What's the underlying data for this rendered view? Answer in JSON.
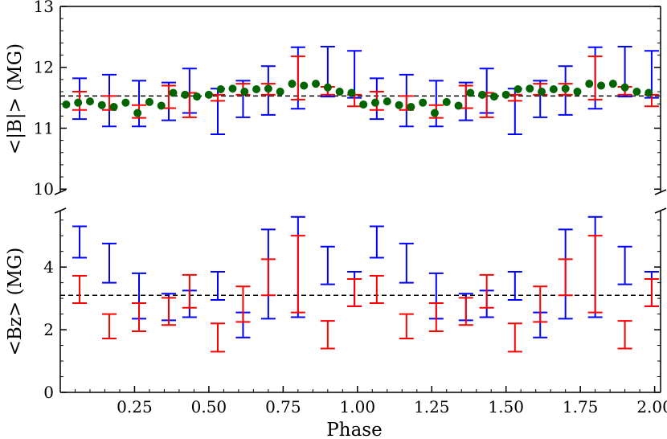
{
  "chart_data": [
    {
      "type": "errorbar-scatter",
      "panel": "top",
      "ylabel": "<|B|> (MG)",
      "xlabel": "",
      "xlim": [
        0.0,
        2.02
      ],
      "ylim": [
        9.95,
        13.0
      ],
      "yticks": [
        10,
        11,
        12,
        13
      ],
      "ytick_labels": [
        "10",
        "11",
        "12",
        "13"
      ],
      "reference_line": 11.53,
      "series": [
        {
          "name": "blue",
          "color": "#0000ff",
          "x": [
            0.065,
            0.165,
            0.265,
            0.365,
            0.435,
            0.53,
            0.615,
            0.7,
            0.8,
            0.9,
            0.99
          ],
          "low": [
            11.15,
            11.03,
            11.03,
            11.13,
            11.25,
            10.9,
            11.18,
            11.22,
            11.32,
            11.52,
            11.5
          ],
          "high": [
            11.82,
            11.88,
            11.78,
            11.75,
            11.98,
            11.65,
            11.78,
            12.02,
            12.33,
            12.34,
            12.27
          ]
        },
        {
          "name": "red",
          "color": "#ff0000",
          "x": [
            0.065,
            0.165,
            0.265,
            0.365,
            0.435,
            0.53,
            0.615,
            0.7,
            0.8,
            0.9,
            0.99
          ],
          "low": [
            11.3,
            11.3,
            11.17,
            11.33,
            11.18,
            11.45,
            11.55,
            11.55,
            11.47,
            11.55,
            11.36
          ],
          "high": [
            11.6,
            11.53,
            11.38,
            11.7,
            11.58,
            11.55,
            11.73,
            11.73,
            12.18,
            11.68,
            11.55
          ]
        },
        {
          "name": "green",
          "color": "#006400",
          "x": [
            0.02,
            0.06,
            0.1,
            0.14,
            0.18,
            0.22,
            0.26,
            0.3,
            0.34,
            0.38,
            0.42,
            0.46,
            0.5,
            0.54,
            0.58,
            0.62,
            0.66,
            0.7,
            0.74,
            0.78,
            0.82,
            0.86,
            0.9,
            0.94,
            0.98
          ],
          "y": [
            11.39,
            11.42,
            11.44,
            11.38,
            11.35,
            11.42,
            11.25,
            11.43,
            11.37,
            11.58,
            11.55,
            11.52,
            11.55,
            11.64,
            11.65,
            11.6,
            11.64,
            11.65,
            11.6,
            11.73,
            11.7,
            11.73,
            11.67,
            11.6,
            11.58
          ]
        }
      ]
    },
    {
      "type": "errorbar",
      "panel": "bottom",
      "ylabel": "<Bz> (MG)",
      "xlabel": "Phase",
      "xlim": [
        0.0,
        2.02
      ],
      "ylim": [
        0.0,
        5.8
      ],
      "yticks": [
        0,
        2,
        4
      ],
      "ytick_labels": [
        "0",
        "2",
        "4"
      ],
      "xticks": [
        0.25,
        0.5,
        0.75,
        1.0,
        1.25,
        1.5,
        1.75,
        2.0
      ],
      "xtick_labels": [
        "0.25",
        "0.50",
        "0.75",
        "1.00",
        "1.25",
        "1.50",
        "1.75",
        "2.00"
      ],
      "reference_line": 3.1,
      "series": [
        {
          "name": "blue",
          "color": "#0000ff",
          "x": [
            0.065,
            0.165,
            0.265,
            0.365,
            0.435,
            0.53,
            0.615,
            0.7,
            0.8,
            0.9,
            0.99
          ],
          "low": [
            4.3,
            3.5,
            2.35,
            2.3,
            2.4,
            2.95,
            1.75,
            2.35,
            2.4,
            3.45,
            2.75
          ],
          "high": [
            5.3,
            4.75,
            3.8,
            3.15,
            3.25,
            3.85,
            2.55,
            5.2,
            5.6,
            4.65,
            3.85
          ]
        },
        {
          "name": "red",
          "color": "#ff0000",
          "x": [
            0.065,
            0.165,
            0.265,
            0.365,
            0.435,
            0.53,
            0.615,
            0.7,
            0.8,
            0.9,
            0.99
          ],
          "low": [
            2.85,
            1.72,
            1.95,
            2.15,
            2.7,
            1.3,
            2.25,
            3.1,
            2.55,
            1.4,
            2.75
          ],
          "high": [
            3.72,
            2.5,
            2.85,
            3.02,
            3.75,
            2.2,
            3.38,
            4.25,
            5.0,
            2.28,
            3.62
          ]
        }
      ]
    }
  ]
}
